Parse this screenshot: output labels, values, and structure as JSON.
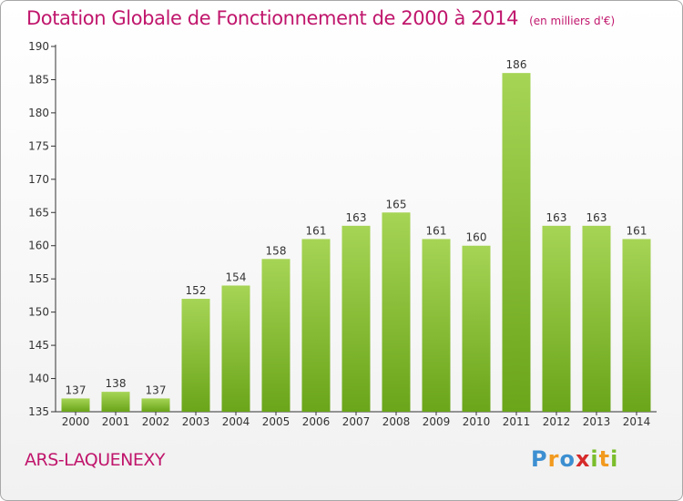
{
  "header": {
    "title": "Dotation Globale de Fonctionnement de 2000 à 2014",
    "unit": "(en milliers d'€)"
  },
  "footer": {
    "commune": "ARS-LAQUENEXY",
    "logo": "Proxiti"
  },
  "colors": {
    "title": "#c0166c",
    "bar_light": "#a6d455",
    "bar_dark": "#6aa51a"
  },
  "chart_data": {
    "type": "bar",
    "categories": [
      "2000",
      "2001",
      "2002",
      "2003",
      "2004",
      "2005",
      "2006",
      "2007",
      "2008",
      "2009",
      "2010",
      "2011",
      "2012",
      "2013",
      "2014"
    ],
    "values": [
      137,
      138,
      137,
      152,
      154,
      158,
      161,
      163,
      165,
      161,
      160,
      186,
      163,
      163,
      161
    ],
    "title": "Dotation Globale de Fonctionnement de 2000 à 2014",
    "ylim": [
      135,
      190
    ],
    "yticks": [
      135,
      140,
      145,
      150,
      155,
      160,
      165,
      170,
      175,
      180,
      185,
      190
    ],
    "grid": false,
    "data_labels": true
  }
}
